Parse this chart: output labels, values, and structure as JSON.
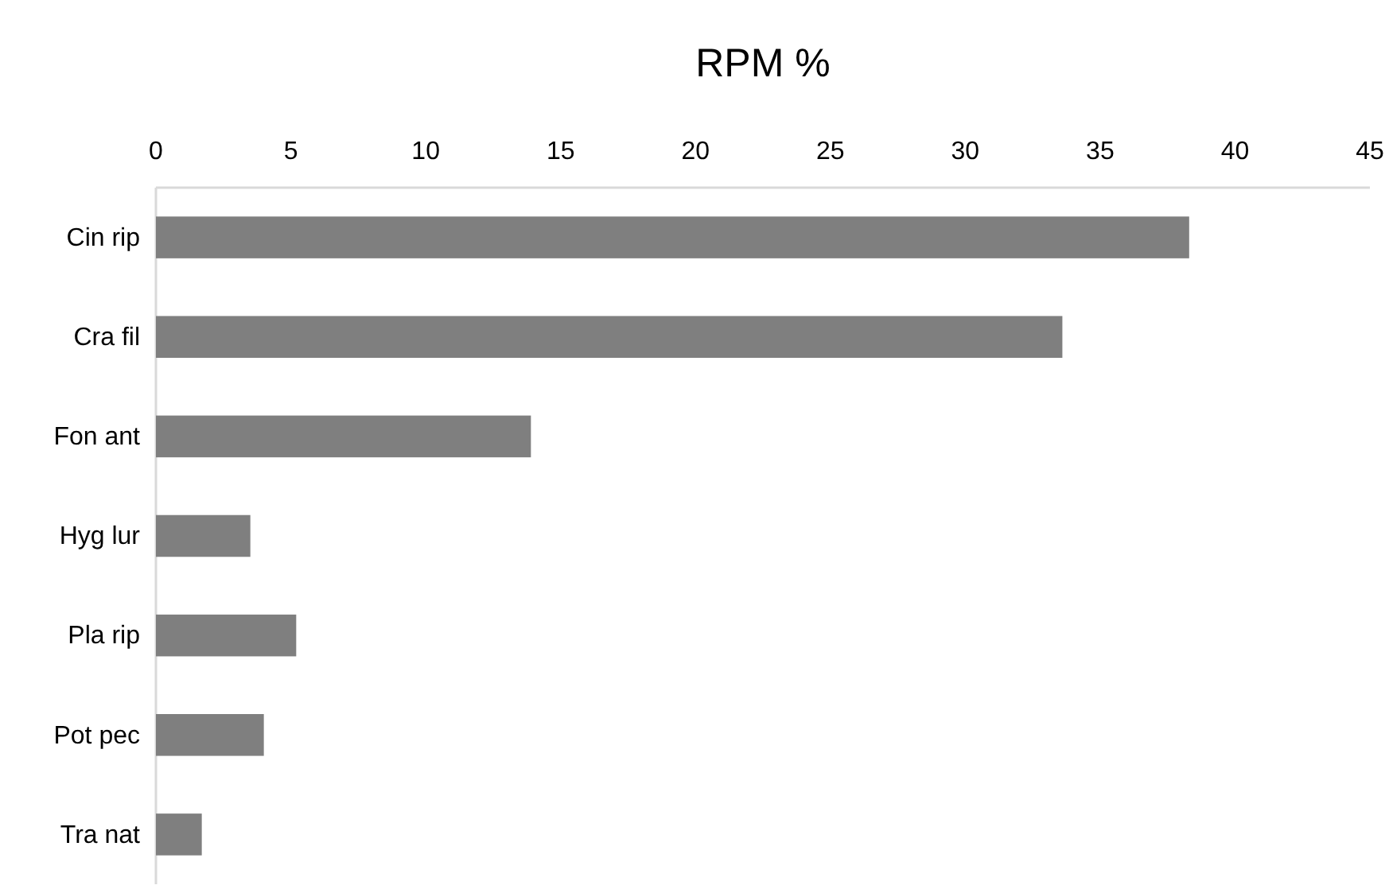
{
  "chart_data": {
    "type": "bar",
    "title": "RPM %",
    "orientation": "horizontal",
    "categories": [
      "Cin rip",
      "Cra fil",
      "Fon ant",
      "Hyg lur",
      "Pla rip",
      "Pot pec",
      "Tra nat"
    ],
    "values": [
      38.3,
      33.6,
      13.9,
      3.5,
      5.2,
      4.0,
      1.7
    ],
    "color": "#7f7f7f",
    "xlim": [
      0,
      45
    ],
    "xticks": [
      0,
      5,
      10,
      15,
      20,
      25,
      30,
      35,
      40,
      45
    ],
    "grid": false
  }
}
